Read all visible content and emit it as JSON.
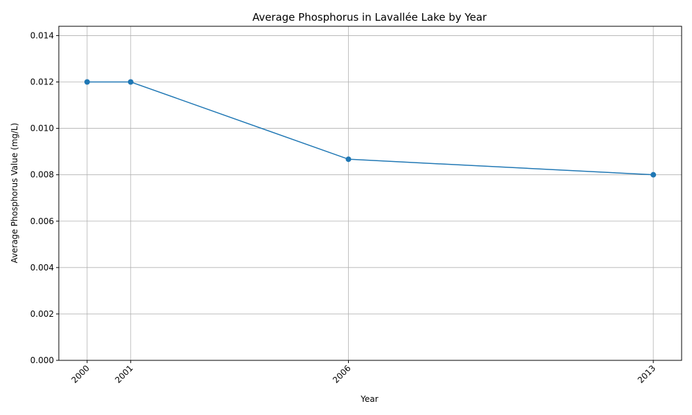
{
  "chart_data": {
    "type": "line",
    "title": "Average Phosphorus in Lavallée Lake by Year",
    "xlabel": "Year",
    "ylabel": "Average Phosphorus Value (mg/L)",
    "x": [
      2000,
      2001,
      2006,
      2013
    ],
    "xticks": [
      "2000",
      "2001",
      "2006",
      "2013"
    ],
    "series": [
      {
        "values": [
          0.012,
          0.012,
          0.00867,
          0.008
        ],
        "color": "#1f77b4",
        "marker": "circle"
      }
    ],
    "xlim": [
      1999.35,
      2013.65
    ],
    "ylim": [
      0,
      0.0144
    ],
    "yticks": [
      "0.000",
      "0.002",
      "0.004",
      "0.006",
      "0.008",
      "0.010",
      "0.012",
      "0.014"
    ],
    "ytick_values": [
      0,
      0.002,
      0.004,
      0.006,
      0.008,
      0.01,
      0.012,
      0.014
    ],
    "grid": true,
    "legend": "none"
  }
}
